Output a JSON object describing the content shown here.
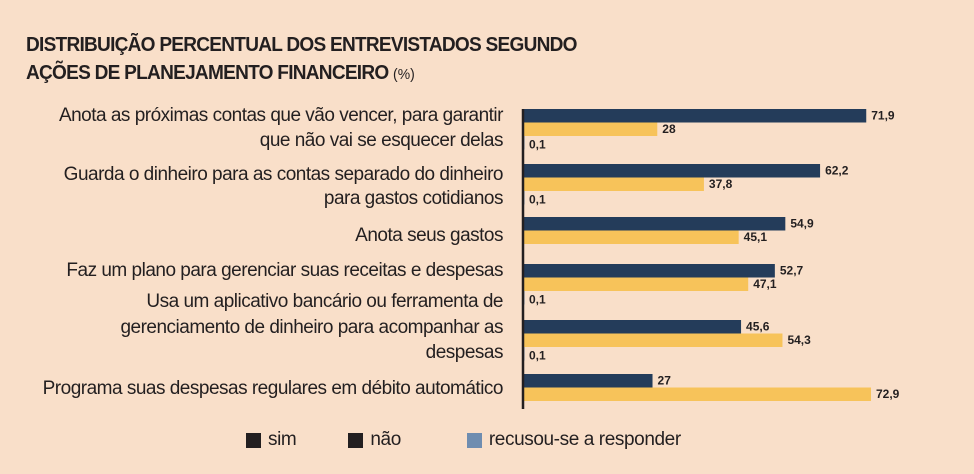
{
  "title": {
    "line1": "DISTRIBUIÇÃO PERCENTUAL DOS ENTREVISTADOS SEGUNDO",
    "line2": "AÇÕES DE PLANEJAMENTO FINANCEIRO",
    "unit": "(%)"
  },
  "colors": {
    "sim": "#243c5a",
    "nao": "#f7c35a",
    "recusou": "#6f8db0",
    "legend_sim": "#231f20",
    "legend_nao": "#231f20",
    "background": "#f9dfc9"
  },
  "legend": {
    "items": [
      {
        "label": "sim",
        "color": "#231f20"
      },
      {
        "label": "não",
        "color": "#231f20"
      },
      {
        "label": "recusou-se a responder",
        "color": "#6f8db0"
      }
    ]
  },
  "chart_data": {
    "type": "bar",
    "orientation": "horizontal",
    "title": "DISTRIBUIÇÃO PERCENTUAL DOS ENTREVISTADOS SEGUNDO AÇÕES DE PLANEJAMENTO FINANCEIRO (%)",
    "xlabel": "",
    "ylabel": "",
    "xlim": [
      0,
      100
    ],
    "grid": false,
    "legend_position": "bottom",
    "categories": [
      [
        "Anota as próximas contas que vão vencer, para garantir",
        "que não vai se esquecer delas"
      ],
      [
        "Guarda o dinheiro para as contas separado do dinheiro",
        "para gastos cotidianos"
      ],
      [
        "Anota seus gastos"
      ],
      [
        "Faz um plano para gerenciar suas receitas e despesas"
      ],
      [
        "Usa um aplicativo bancário ou ferramenta de",
        "gerenciamento de dinheiro para acompanhar as",
        "despesas"
      ],
      [
        "Programa suas despesas regulares em débito automático"
      ]
    ],
    "series": [
      {
        "name": "sim",
        "values": [
          71.9,
          62.2,
          54.9,
          52.7,
          45.6,
          27
        ],
        "labels": [
          "71,9",
          "62,2",
          "54,9",
          "52,7",
          "45,6",
          "27"
        ]
      },
      {
        "name": "não",
        "values": [
          28,
          37.8,
          45.1,
          47.1,
          54.3,
          72.9
        ],
        "labels": [
          "28",
          "37,8",
          "45,1",
          "47,1",
          "54,3",
          "72,9"
        ]
      },
      {
        "name": "recusou-se a responder",
        "values": [
          0.1,
          0.1,
          null,
          0.1,
          0.1,
          null
        ],
        "labels": [
          "0,1",
          "0,1",
          null,
          "0,1",
          "0,1",
          null
        ]
      }
    ]
  }
}
